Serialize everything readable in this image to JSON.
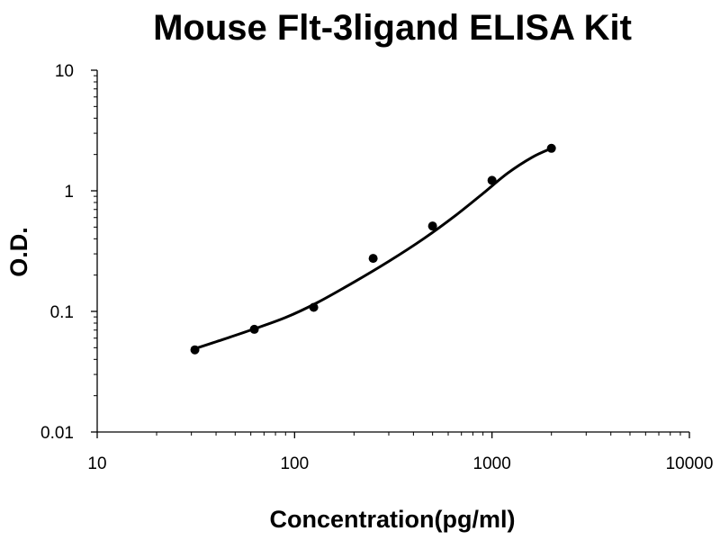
{
  "chart_data": {
    "type": "scatter",
    "title": "Mouse Flt-3ligand ELISA Kit",
    "xlabel": "Concentration(pg/ml)",
    "ylabel": "O.D.",
    "x_scale": "log",
    "y_scale": "log",
    "xlim": [
      10,
      10000
    ],
    "ylim": [
      0.01,
      10
    ],
    "x_ticks": [
      "10",
      "100",
      "1000",
      "10000"
    ],
    "y_ticks": [
      "0.01",
      "0.1",
      "1",
      "10"
    ],
    "grid": false,
    "legend": "none",
    "series": [
      {
        "x": [
          31.25,
          62.5,
          125,
          250,
          500,
          1000,
          2000
        ],
        "y": [
          0.048,
          0.071,
          0.108,
          0.275,
          0.51,
          1.22,
          2.25
        ]
      }
    ],
    "fit_curve": {
      "x": [
        30,
        40,
        60,
        90,
        130,
        200,
        300,
        450,
        650,
        900,
        1200,
        1600,
        2000
      ],
      "y": [
        0.048,
        0.056,
        0.07,
        0.089,
        0.118,
        0.175,
        0.26,
        0.4,
        0.62,
        0.95,
        1.4,
        1.9,
        2.25
      ]
    },
    "colors": {
      "marker": "#000000",
      "curve": "#000000",
      "axis": "#000000"
    }
  }
}
